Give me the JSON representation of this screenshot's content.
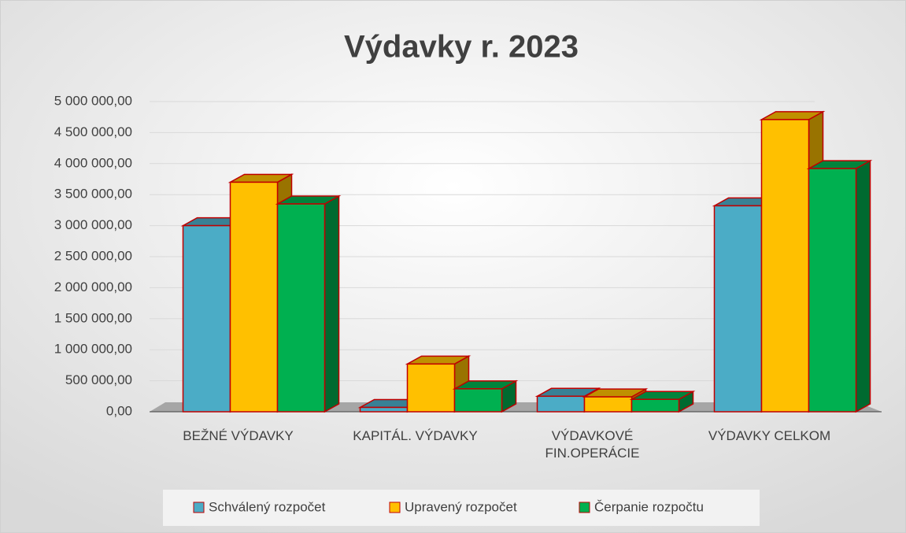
{
  "chart_data": {
    "type": "bar3d",
    "title": "Výdavky  r. 2023",
    "categories": [
      "BEŽNÉ VÝDAVKY",
      "KAPITÁL. VÝDAVKY",
      "VÝDAVKOVÉ FIN.OPERÁCIE",
      "VÝDAVKY CELKOM"
    ],
    "series": [
      {
        "name": "Schválený rozpočet",
        "color": "#4bacc6",
        "values": [
          3000000,
          70000,
          250000,
          3320000
        ]
      },
      {
        "name": "Upravený rozpočet",
        "color": "#ffc000",
        "values": [
          3700000,
          770000,
          240000,
          4710000
        ]
      },
      {
        "name": "Čerpanie rozpočtu",
        "color": "#00b050",
        "values": [
          3350000,
          370000,
          200000,
          3920000
        ]
      }
    ],
    "ylim": [
      0,
      5000000
    ],
    "yticks": [
      {
        "value": 0,
        "label": "0,00"
      },
      {
        "value": 500000,
        "label": "500 000,00"
      },
      {
        "value": 1000000,
        "label": "1 000 000,00"
      },
      {
        "value": 1500000,
        "label": "1 500 000,00"
      },
      {
        "value": 2000000,
        "label": "2 000 000,00"
      },
      {
        "value": 2500000,
        "label": "2 500 000,00"
      },
      {
        "value": 3000000,
        "label": "3 000 000,00"
      },
      {
        "value": 3500000,
        "label": "3 500 000,00"
      },
      {
        "value": 4000000,
        "label": "4 000 000,00"
      },
      {
        "value": 4500000,
        "label": "4 500 000,00"
      },
      {
        "value": 5000000,
        "label": "5 000 000,00"
      }
    ],
    "grid": true,
    "legend": "bottom"
  }
}
